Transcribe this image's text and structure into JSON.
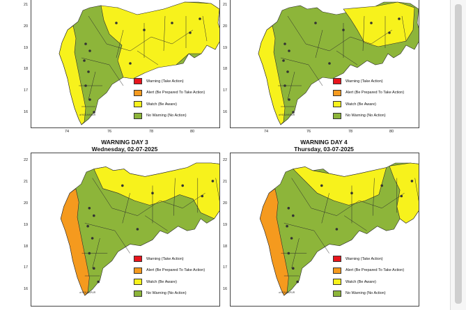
{
  "colors": {
    "red": "#e8141c",
    "orange": "#f59a1e",
    "yellow": "#f7f21c",
    "green": "#8db53a",
    "sea": "#ffffff"
  },
  "legend": [
    {
      "label": "Warning (Take Action)",
      "color": "#e8141c"
    },
    {
      "label": "Alert (Be Prepared To Take Action)",
      "color": "#f59a1e"
    },
    {
      "label": "Watch (Be Aware)",
      "color": "#f7f21c"
    },
    {
      "label": "No Warning (No Action)",
      "color": "#8db53a"
    }
  ],
  "x_ticks": [
    "74",
    "76",
    "78",
    "80"
  ],
  "y_ticks_top": [
    "21",
    "20",
    "19",
    "18",
    "17",
    "16"
  ],
  "y_ticks_bottom": [
    "22",
    "21",
    "20",
    "19",
    "18",
    "17",
    "16"
  ],
  "place_label": "of KOLHAPUR",
  "panels": [
    {
      "id": "p1",
      "heading": "",
      "subheading": "",
      "coast": "yellow"
    },
    {
      "id": "p2",
      "heading": "",
      "subheading": "",
      "coast": "yellow"
    },
    {
      "id": "p3",
      "heading": "WARNING DAY 3",
      "subheading": "Wednesday, 02-07-2025",
      "coast": "orange"
    },
    {
      "id": "p4",
      "heading": "WARNING DAY 4",
      "subheading": "Thursday, 03-07-2025",
      "coast": "orange"
    }
  ]
}
